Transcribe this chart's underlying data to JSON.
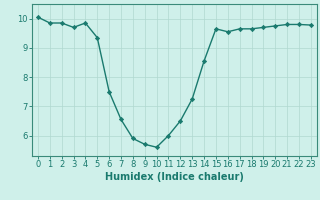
{
  "x": [
    0,
    1,
    2,
    3,
    4,
    5,
    6,
    7,
    8,
    9,
    10,
    11,
    12,
    13,
    14,
    15,
    16,
    17,
    18,
    19,
    20,
    21,
    22,
    23
  ],
  "y": [
    10.05,
    9.85,
    9.85,
    9.7,
    9.85,
    9.35,
    7.5,
    6.55,
    5.9,
    5.7,
    5.6,
    6.0,
    6.5,
    7.25,
    8.55,
    9.65,
    9.55,
    9.65,
    9.65,
    9.7,
    9.75,
    9.8,
    9.8,
    9.78
  ],
  "line_color": "#1a7a6e",
  "marker": "D",
  "markersize": 2.2,
  "linewidth": 1.0,
  "xlabel": "Humidex (Indice chaleur)",
  "xlim": [
    -0.5,
    23.5
  ],
  "ylim": [
    5.3,
    10.5
  ],
  "yticks": [
    6,
    7,
    8,
    9,
    10
  ],
  "xticks": [
    0,
    1,
    2,
    3,
    4,
    5,
    6,
    7,
    8,
    9,
    10,
    11,
    12,
    13,
    14,
    15,
    16,
    17,
    18,
    19,
    20,
    21,
    22,
    23
  ],
  "bg_color": "#cff0ea",
  "grid_color": "#b0d8d0",
  "spine_color": "#3a8a7a",
  "tick_color": "#1a7a6e",
  "label_color": "#1a7a6e",
  "xlabel_fontsize": 7,
  "tick_fontsize": 6
}
